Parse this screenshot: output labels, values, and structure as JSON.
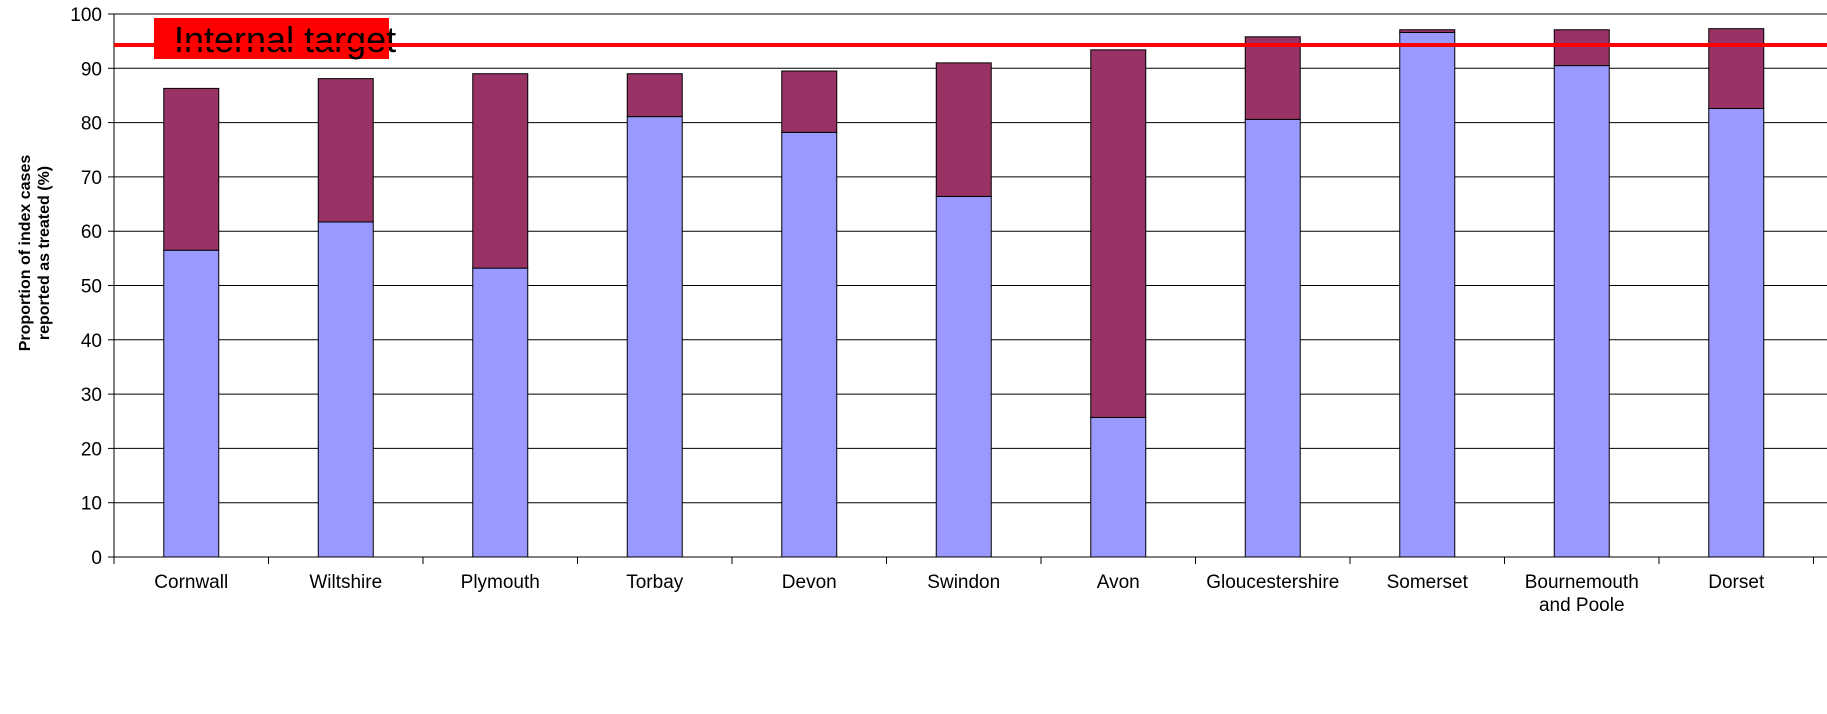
{
  "chart_data": {
    "type": "bar",
    "stacked": true,
    "categories": [
      "Cornwall",
      "Wiltshire",
      "Plymouth",
      "Torbay",
      "Devon",
      "Swindon",
      "Avon",
      "Gloucestershire",
      "Somerset",
      "Bournemouth and Poole",
      "Dorset"
    ],
    "category_lines": [
      [
        "Cornwall"
      ],
      [
        "Wiltshire"
      ],
      [
        "Plymouth"
      ],
      [
        "Torbay"
      ],
      [
        "Devon"
      ],
      [
        "Swindon"
      ],
      [
        "Avon"
      ],
      [
        "Gloucestershire"
      ],
      [
        "Somerset"
      ],
      [
        "Bournemouth",
        "and Poole"
      ],
      [
        "Dorset"
      ]
    ],
    "series": [
      {
        "color": "#9999ff",
        "values": [
          56.5,
          61.7,
          53.2,
          81.1,
          78.2,
          66.4,
          25.7,
          80.6,
          96.6,
          90.5,
          82.6
        ]
      },
      {
        "color": "#993366",
        "values": [
          29.8,
          26.4,
          35.8,
          7.9,
          11.3,
          24.6,
          67.7,
          15.2,
          0.5,
          6.6,
          14.7
        ]
      }
    ],
    "ylabel": [
      "Proportion of index cases",
      "reported as treated (%)"
    ],
    "ylim": [
      0,
      100
    ],
    "yticks": [
      0,
      10,
      20,
      30,
      40,
      50,
      60,
      70,
      80,
      90,
      100
    ],
    "grid": true,
    "target": {
      "label": "Internal target",
      "value": 94.3,
      "color": "#ff0000"
    }
  }
}
